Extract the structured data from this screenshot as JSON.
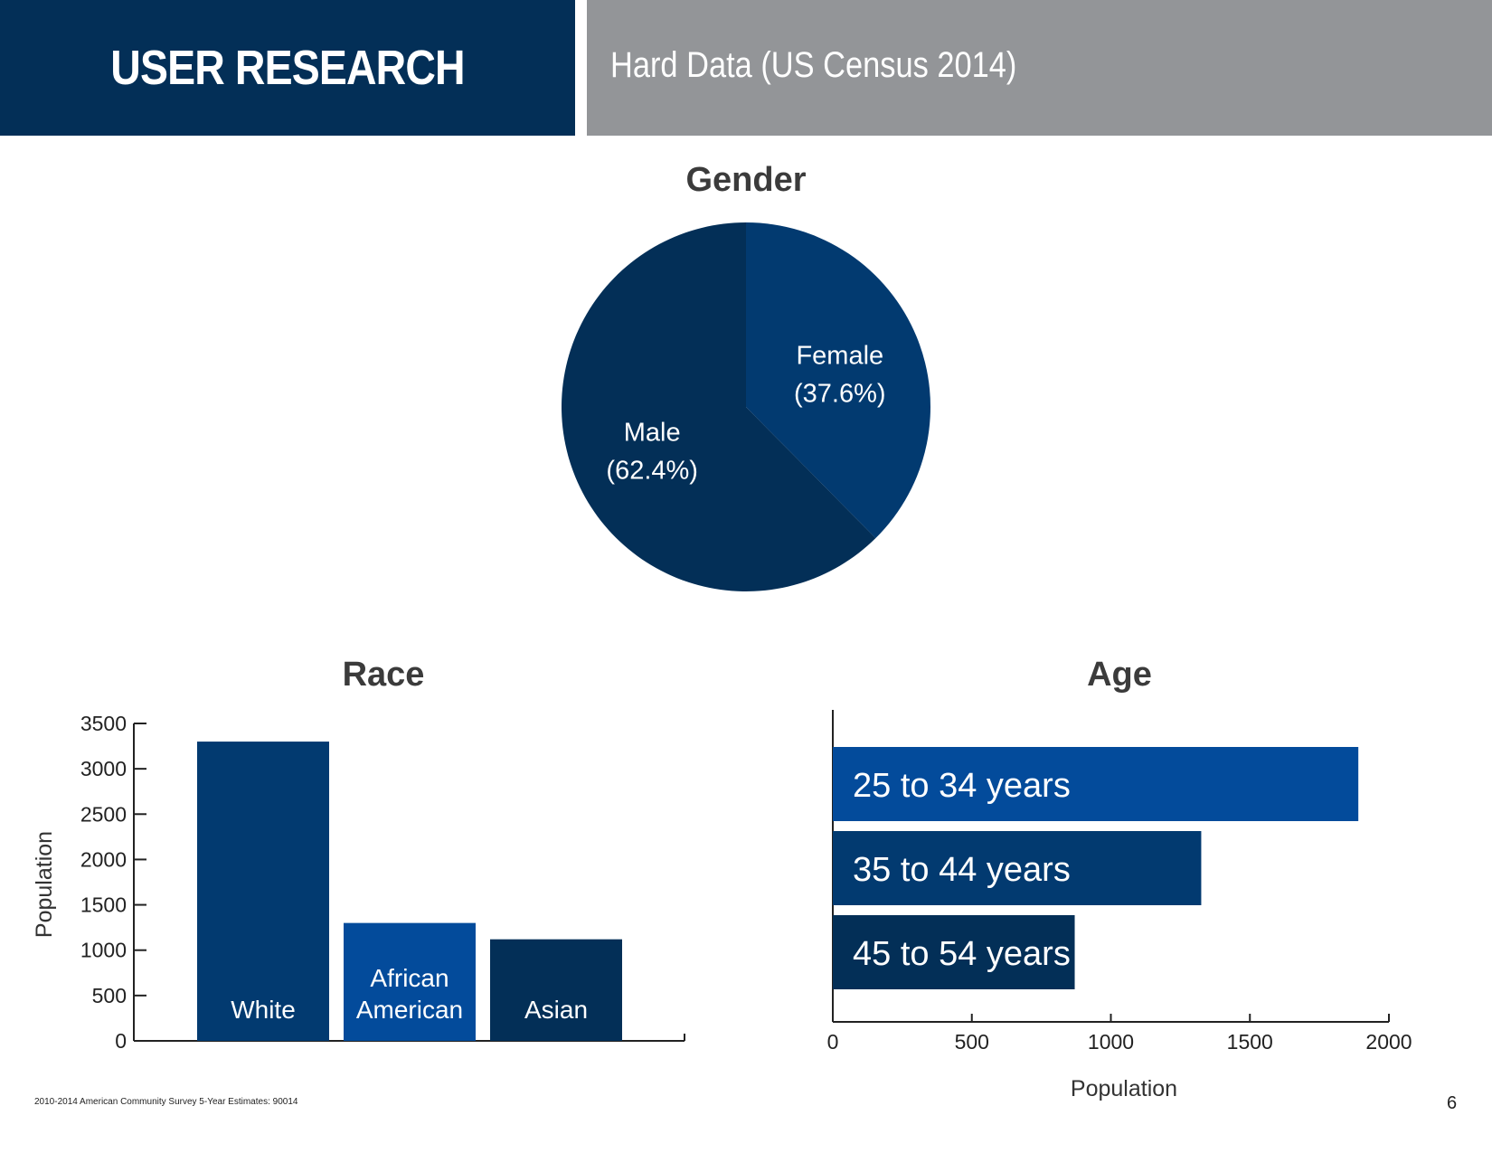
{
  "header": {
    "title": "USER RESEARCH",
    "subtitle": "Hard Data (US Census 2014)"
  },
  "colors": {
    "navy_dark": "#032f57",
    "navy": "#023a70",
    "blue": "#034b9b",
    "header_gray": "#939598"
  },
  "chart_data": [
    {
      "type": "pie",
      "title": "Gender",
      "slices": [
        {
          "label": "Female",
          "pct_label": "(37.6%)",
          "value": 37.6,
          "color": "#023a70"
        },
        {
          "label": "Male",
          "pct_label": "(62.4%)",
          "value": 62.4,
          "color": "#032f57"
        }
      ]
    },
    {
      "type": "bar",
      "title": "Race",
      "ylabel": "Population",
      "ylim": [
        0,
        3500
      ],
      "yticks": [
        "0",
        "500",
        "1000",
        "1500",
        "2000",
        "2500",
        "3000",
        "3500"
      ],
      "categories": [
        [
          "White"
        ],
        [
          "African",
          "American"
        ],
        [
          "Asian"
        ]
      ],
      "values": [
        3300,
        1300,
        1120
      ],
      "colors": [
        "#023a70",
        "#034b9b",
        "#032f57"
      ]
    },
    {
      "type": "bar",
      "orientation": "horizontal",
      "title": "Age",
      "xlabel": "Population",
      "xlim": [
        0,
        2000
      ],
      "xticks": [
        "0",
        "500",
        "1000",
        "1500",
        "2000"
      ],
      "categories": [
        "25 to 34 years",
        "35 to 44 years",
        "45 to 54 years"
      ],
      "values": [
        1890,
        1325,
        870
      ],
      "colors": [
        "#034b9b",
        "#023a70",
        "#032f57"
      ]
    }
  ],
  "footer": {
    "source": "2010-2014 American Community Survey 5-Year Estimates: 90014",
    "page_number": "6"
  }
}
